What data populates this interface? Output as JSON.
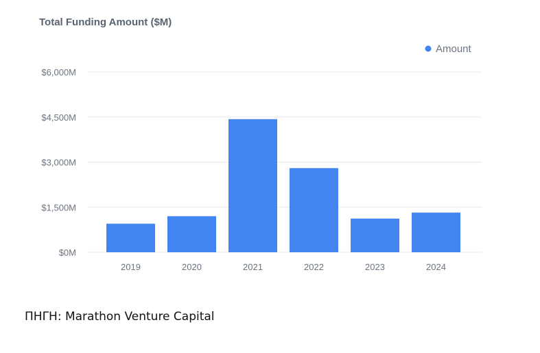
{
  "chart_data": {
    "type": "bar",
    "title": "Total Funding Amount ($M)",
    "xlabel": "",
    "ylabel": "",
    "categories": [
      "2019",
      "2020",
      "2021",
      "2022",
      "2023",
      "2024"
    ],
    "series": [
      {
        "name": "Amount",
        "values": [
          950,
          1200,
          4430,
          2800,
          1120,
          1320
        ],
        "color": "#4285f0"
      }
    ],
    "ylim": [
      0,
      6000
    ],
    "yticks": [
      0,
      1500,
      3000,
      4500,
      6000
    ],
    "ytick_labels": [
      "$0M",
      "$1,500M",
      "$3,000M",
      "$4,500M",
      "$6,000M"
    ],
    "grid": true,
    "legend_position": "top-right"
  },
  "source": "ΠΗΓΗ: Marathon Venture Capital",
  "colors": {
    "bar": "#4285f0",
    "grid": "#e6e8eb",
    "axis_text": "#6b7480",
    "title": "#5a6470"
  }
}
